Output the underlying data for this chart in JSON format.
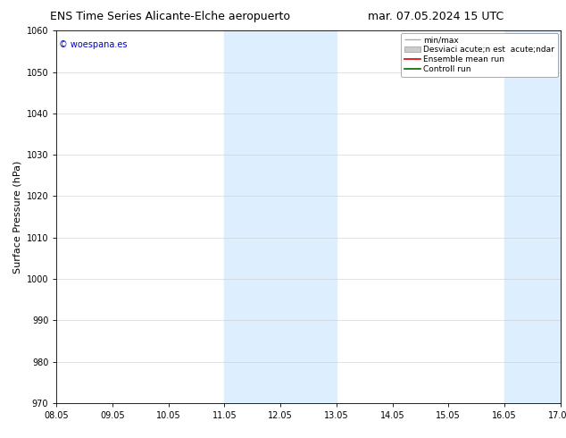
{
  "title_left": "ENS Time Series Alicante-Elche aeropuerto",
  "title_right": "mar. 07.05.2024 15 UTC",
  "ylabel": "Surface Pressure (hPa)",
  "ylim": [
    970,
    1060
  ],
  "yticks": [
    970,
    980,
    990,
    1000,
    1010,
    1020,
    1030,
    1040,
    1050,
    1060
  ],
  "xtick_labels": [
    "08.05",
    "09.05",
    "10.05",
    "11.05",
    "12.05",
    "13.05",
    "14.05",
    "15.05",
    "16.05",
    "17.05"
  ],
  "xtick_positions": [
    0,
    1,
    2,
    3,
    4,
    5,
    6,
    7,
    8,
    9
  ],
  "xlim": [
    0,
    9
  ],
  "shaded_bands": [
    {
      "xmin": 3.0,
      "xmax": 4.0,
      "color": "#ddeeff",
      "alpha": 1.0
    },
    {
      "xmin": 4.0,
      "xmax": 5.0,
      "color": "#ddeeff",
      "alpha": 1.0
    },
    {
      "xmin": 8.0,
      "xmax": 9.0,
      "color": "#ddeeff",
      "alpha": 1.0
    }
  ],
  "copyright_text": "© woespana.es",
  "copyright_color": "#0000cc",
  "legend_label_minmax": "min/max",
  "legend_label_desv": "Desviaci acute;n est  acute;ndar",
  "legend_label_ensemble": "Ensemble mean run",
  "legend_label_control": "Controll run",
  "color_minmax": "#aaaaaa",
  "color_desv": "#cccccc",
  "color_ensemble": "#dd0000",
  "color_control": "#006600",
  "bg_color": "#ffffff",
  "title_fontsize": 9,
  "tick_fontsize": 7,
  "ylabel_fontsize": 8,
  "legend_fontsize": 6.5,
  "copyright_fontsize": 7
}
